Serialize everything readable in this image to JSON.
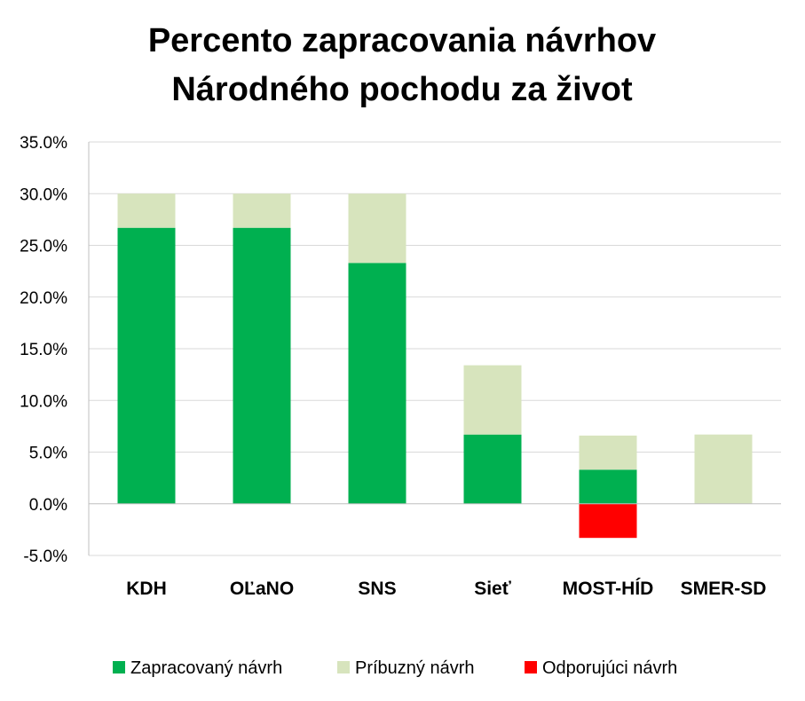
{
  "chart_data": {
    "type": "bar",
    "stacked": true,
    "title_lines": [
      "Percento zapracovania návrhov",
      "Národného pochodu za život"
    ],
    "title": "Percento zapracovania návrhov Národného pochodu za život",
    "categories": [
      "KDH",
      "OĽaNO",
      "SNS",
      "Sieť",
      "MOST-HÍD",
      "SMER-SD"
    ],
    "series": [
      {
        "name": "Zapracovaný návrh",
        "color": "#00b050",
        "values": [
          26.7,
          26.7,
          23.3,
          6.7,
          3.3,
          0.0
        ]
      },
      {
        "name": "Príbuzný návrh",
        "color": "#d7e4bd",
        "values": [
          3.3,
          3.3,
          6.7,
          6.7,
          3.3,
          6.7
        ]
      },
      {
        "name": "Odporujúci návrh",
        "color": "#ff0000",
        "values": [
          0.0,
          0.0,
          0.0,
          0.0,
          -3.3,
          0.0
        ]
      }
    ],
    "ylim": [
      -5,
      35
    ],
    "yticks": [
      35,
      30,
      25,
      20,
      15,
      10,
      5,
      0,
      -5
    ],
    "ytick_labels": [
      "35.0%",
      "30.0%",
      "25.0%",
      "20.0%",
      "15.0%",
      "10.0%",
      "5.0%",
      "0.0%",
      "-5.0%"
    ],
    "xlabel": "",
    "ylabel": "",
    "grid": true,
    "legend_position": "bottom"
  }
}
